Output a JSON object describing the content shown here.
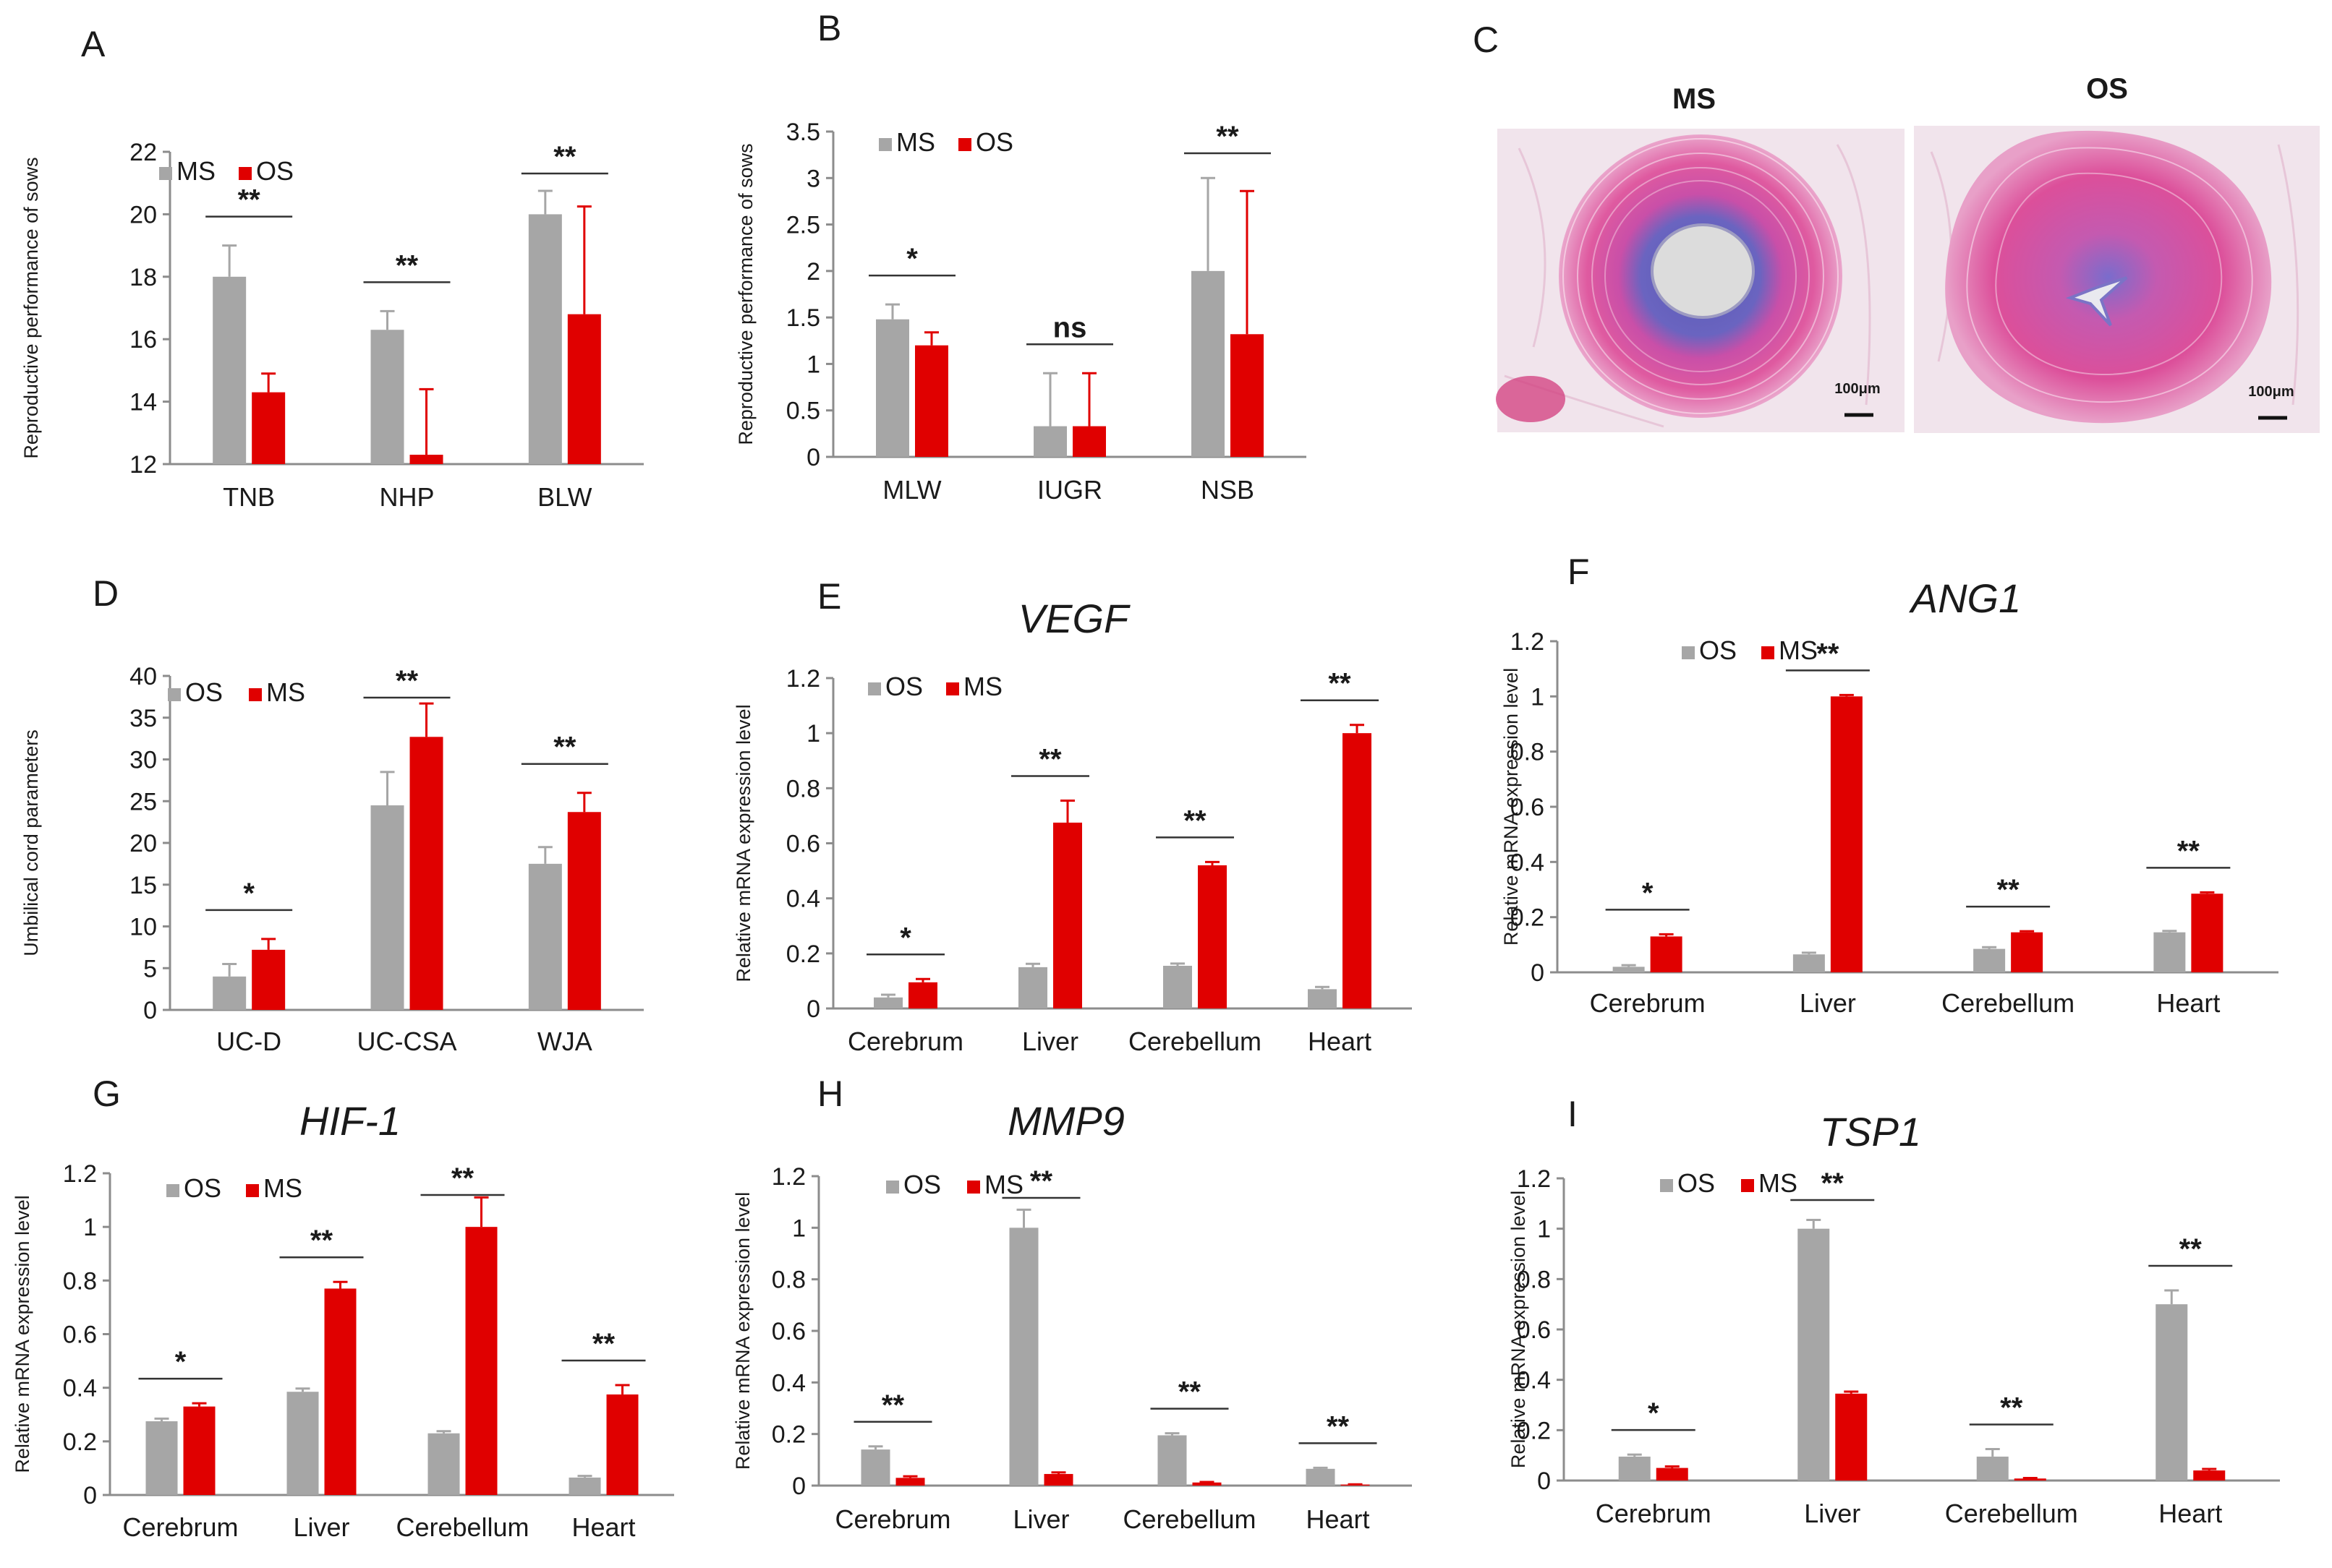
{
  "colors": {
    "gray": "#a6a6a6",
    "red": "#e00000",
    "axis": "#8c8c8c",
    "text": "#1a1a1a"
  },
  "chart_data": [
    {
      "panel": "A",
      "type": "bar",
      "title": "",
      "ylabel": "Reproductive performance of sows",
      "xlabel": "",
      "ylim": [
        12,
        22
      ],
      "yticks": [
        "12",
        "14",
        "16",
        "18",
        "20",
        "22"
      ],
      "grid": false,
      "legend_position": "top-left",
      "categories": [
        "TNB",
        "NHP",
        "BLW"
      ],
      "series": [
        {
          "name": "MS",
          "color": "#a6a6a6",
          "values": [
            18.0,
            16.3,
            20.0
          ],
          "errors": [
            1.0,
            0.6,
            0.75
          ]
        },
        {
          "name": "OS",
          "color": "#e00000",
          "values": [
            14.3,
            12.3,
            16.8
          ],
          "errors": [
            0.6,
            2.1,
            3.45
          ]
        }
      ],
      "significance": [
        "**",
        "**",
        "**"
      ]
    },
    {
      "panel": "B",
      "type": "bar",
      "title": "",
      "ylabel": "Reproductive performance of sows",
      "xlabel": "",
      "ylim": [
        0,
        3.5
      ],
      "yticks": [
        "0",
        "0.5",
        "1",
        "1.5",
        "2",
        "2.5",
        "3",
        "3.5"
      ],
      "grid": false,
      "legend_position": "top-left",
      "categories": [
        "MLW",
        "IUGR",
        "NSB"
      ],
      "series": [
        {
          "name": "MS",
          "color": "#a6a6a6",
          "values": [
            1.48,
            0.33,
            2.0
          ],
          "errors": [
            0.16,
            0.57,
            1.0
          ]
        },
        {
          "name": "OS",
          "color": "#e00000",
          "values": [
            1.2,
            0.33,
            1.32
          ],
          "errors": [
            0.14,
            0.57,
            1.54
          ]
        }
      ],
      "significance": [
        "*",
        "ns",
        "**"
      ]
    },
    {
      "panel": "D",
      "type": "bar",
      "title": "",
      "ylabel": "Umbilical cord parameters",
      "xlabel": "",
      "ylim": [
        0,
        40
      ],
      "yticks": [
        "0",
        "5",
        "10",
        "15",
        "20",
        "25",
        "30",
        "35",
        "40"
      ],
      "grid": false,
      "legend_position": "top-left",
      "categories": [
        "UC-D",
        "UC-CSA",
        "WJA"
      ],
      "series": [
        {
          "name": "OS",
          "color": "#a6a6a6",
          "values": [
            4.0,
            24.5,
            17.5
          ],
          "errors": [
            1.5,
            4.0,
            2.0
          ]
        },
        {
          "name": "MS",
          "color": "#e00000",
          "values": [
            7.2,
            32.7,
            23.7
          ],
          "errors": [
            1.3,
            4.0,
            2.3
          ]
        }
      ],
      "significance": [
        "*",
        "**",
        "**"
      ]
    },
    {
      "panel": "E",
      "type": "bar",
      "title": "VEGF",
      "ylabel": "Relative mRNA expression level",
      "xlabel": "",
      "ylim": [
        0,
        1.2
      ],
      "yticks": [
        "0",
        "0.2",
        "0.4",
        "0.6",
        "0.8",
        "1",
        "1.2"
      ],
      "grid": false,
      "legend_position": "top-left",
      "categories": [
        "Cerebrum",
        "Liver",
        "Cerebellum",
        "Heart"
      ],
      "series": [
        {
          "name": "OS",
          "color": "#a6a6a6",
          "values": [
            0.04,
            0.15,
            0.155,
            0.07
          ],
          "errors": [
            0.01,
            0.012,
            0.008,
            0.008
          ]
        },
        {
          "name": "MS",
          "color": "#e00000",
          "values": [
            0.095,
            0.675,
            0.52,
            1.0
          ],
          "errors": [
            0.012,
            0.08,
            0.012,
            0.03
          ]
        }
      ],
      "significance": [
        "*",
        "**",
        "**",
        "**"
      ]
    },
    {
      "panel": "F",
      "type": "bar",
      "title": "ANG1",
      "ylabel": "Relative mRNA expression level",
      "xlabel": "",
      "ylim": [
        0,
        1.2
      ],
      "yticks": [
        "0",
        "0.2",
        "0.4",
        "0.6",
        "0.8",
        "1",
        "1.2"
      ],
      "grid": false,
      "legend_position": "top-left",
      "categories": [
        "Cerebrum",
        "Liver",
        "Cerebellum",
        "Heart"
      ],
      "series": [
        {
          "name": "OS",
          "color": "#a6a6a6",
          "values": [
            0.02,
            0.065,
            0.085,
            0.145
          ],
          "errors": [
            0.006,
            0.006,
            0.006,
            0.005
          ]
        },
        {
          "name": "MS",
          "color": "#e00000",
          "values": [
            0.13,
            1.0,
            0.145,
            0.285
          ],
          "errors": [
            0.008,
            0.005,
            0.004,
            0.005
          ]
        }
      ],
      "significance": [
        "*",
        "**",
        "**",
        "**"
      ]
    },
    {
      "panel": "G",
      "type": "bar",
      "title": "HIF-1",
      "ylabel": "Relative mRNA expression level",
      "xlabel": "",
      "ylim": [
        0,
        1.2
      ],
      "yticks": [
        "0",
        "0.2",
        "0.4",
        "0.6",
        "0.8",
        "1",
        "1.2"
      ],
      "grid": false,
      "legend_position": "top-left",
      "categories": [
        "Cerebrum",
        "Liver",
        "Cerebellum",
        "Heart"
      ],
      "series": [
        {
          "name": "OS",
          "color": "#a6a6a6",
          "values": [
            0.275,
            0.385,
            0.23,
            0.065
          ],
          "errors": [
            0.01,
            0.012,
            0.008,
            0.006
          ]
        },
        {
          "name": "MS",
          "color": "#e00000",
          "values": [
            0.33,
            0.77,
            1.0,
            0.375
          ],
          "errors": [
            0.012,
            0.025,
            0.11,
            0.035
          ]
        }
      ],
      "significance": [
        "*",
        "**",
        "**",
        "**"
      ]
    },
    {
      "panel": "H",
      "type": "bar",
      "title": "MMP9",
      "ylabel": "Relative mRNA expression level",
      "xlabel": "",
      "ylim": [
        0,
        1.2
      ],
      "yticks": [
        "0",
        "0.2",
        "0.4",
        "0.6",
        "0.8",
        "1",
        "1.2"
      ],
      "grid": false,
      "legend_position": "top-left",
      "categories": [
        "Cerebrum",
        "Liver",
        "Cerebellum",
        "Heart"
      ],
      "series": [
        {
          "name": "OS",
          "color": "#a6a6a6",
          "values": [
            0.14,
            1.0,
            0.195,
            0.065
          ],
          "errors": [
            0.012,
            0.07,
            0.008,
            0.004
          ]
        },
        {
          "name": "MS",
          "color": "#e00000",
          "values": [
            0.03,
            0.045,
            0.012,
            0.004
          ],
          "errors": [
            0.006,
            0.006,
            0.002,
            0.001
          ]
        }
      ],
      "significance": [
        "**",
        "**",
        "**",
        "**"
      ]
    },
    {
      "panel": "I",
      "type": "bar",
      "title": "TSP1",
      "ylabel": "Relative mRNA expression level",
      "xlabel": "",
      "ylim": [
        0,
        1.2
      ],
      "yticks": [
        "0",
        "0.2",
        "0.4",
        "0.6",
        "0.8",
        "1",
        "1.2"
      ],
      "grid": false,
      "legend_position": "top-left",
      "categories": [
        "Cerebrum",
        "Liver",
        "Cerebellum",
        "Heart"
      ],
      "series": [
        {
          "name": "OS",
          "color": "#a6a6a6",
          "values": [
            0.095,
            1.0,
            0.095,
            0.7
          ],
          "errors": [
            0.008,
            0.035,
            0.03,
            0.055
          ]
        },
        {
          "name": "MS",
          "color": "#e00000",
          "values": [
            0.05,
            0.345,
            0.008,
            0.04
          ],
          "errors": [
            0.006,
            0.008,
            0.002,
            0.006
          ]
        }
      ],
      "significance": [
        "*",
        "**",
        "**",
        "**"
      ]
    }
  ],
  "histology": {
    "panel": "C",
    "images": [
      {
        "title": "MS",
        "scale_bar": "100μm",
        "lumen": "open"
      },
      {
        "title": "OS",
        "scale_bar": "100μm",
        "lumen": "collapsed"
      }
    ]
  }
}
